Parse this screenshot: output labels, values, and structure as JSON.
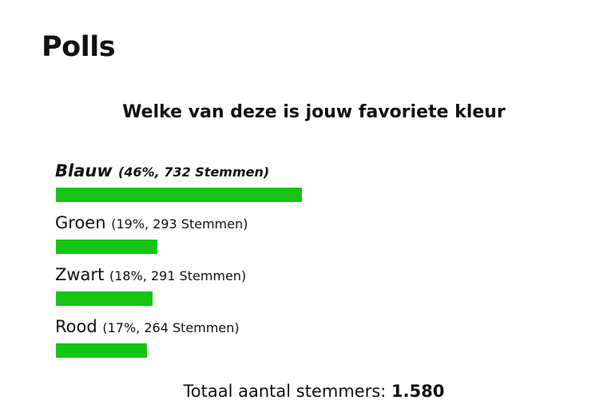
{
  "page": {
    "heading": "Polls"
  },
  "poll": {
    "question": "Welke van deze is jouw favoriete kleur",
    "bar_color": "#16c416",
    "options": [
      {
        "label": "Blauw",
        "stats": "(46%, 732 Stemmen)",
        "percent": 46,
        "votes": 732,
        "leading": true
      },
      {
        "label": "Groen",
        "stats": "(19%, 293 Stemmen)",
        "percent": 19,
        "votes": 293,
        "leading": false
      },
      {
        "label": "Zwart",
        "stats": "(18%, 291 Stemmen)",
        "percent": 18,
        "votes": 291,
        "leading": false
      },
      {
        "label": "Rood",
        "stats": "(17%, 264 Stemmen)",
        "percent": 17,
        "votes": 264,
        "leading": false
      }
    ],
    "total_label": "Totaal aantal stemmers:",
    "total_value": "1.580"
  }
}
